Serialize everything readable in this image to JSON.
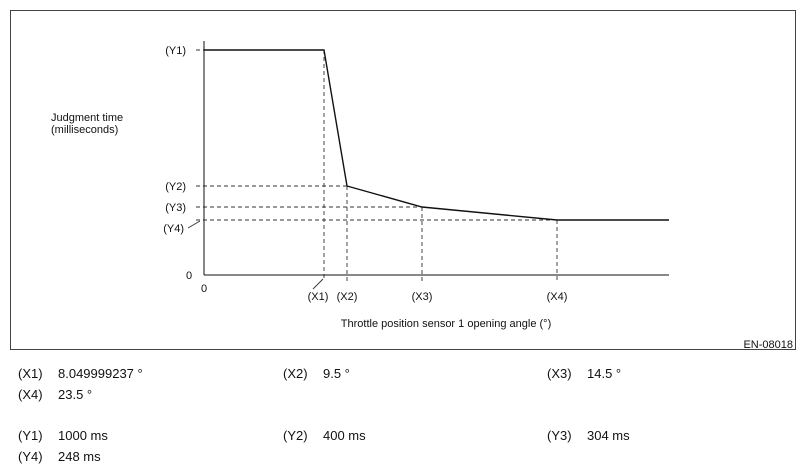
{
  "chart_data": {
    "type": "line",
    "ylabel_line1": "Judgment time",
    "ylabel_line2": "(milliseconds)",
    "xlabel": "Throttle position sensor 1 opening angle (°)",
    "figure_id": "EN-08018",
    "origin_x_label": "0",
    "origin_y_label": "0",
    "x_marks": [
      {
        "label": "(X1)",
        "value": 8.05
      },
      {
        "label": "(X2)",
        "value": 9.5
      },
      {
        "label": "(X3)",
        "value": 14.5
      },
      {
        "label": "(X4)",
        "value": 23.5
      }
    ],
    "y_marks": [
      {
        "label": "(Y1)",
        "value": 1000
      },
      {
        "label": "(Y2)",
        "value": 400
      },
      {
        "label": "(Y3)",
        "value": 304
      },
      {
        "label": "(Y4)",
        "value": 248
      }
    ],
    "series": [
      {
        "x": [
          0,
          8.05,
          9.5,
          14.5,
          23.5,
          31
        ],
        "y": [
          1000,
          1000,
          400,
          304,
          248,
          248
        ]
      }
    ]
  },
  "legend": {
    "x_values": [
      {
        "tag": "(X1)",
        "text": "8.049999237 °"
      },
      {
        "tag": "(X2)",
        "text": "9.5 °"
      },
      {
        "tag": "(X3)",
        "text": "14.5 °"
      },
      {
        "tag": "(X4)",
        "text": "23.5 °"
      }
    ],
    "y_values": [
      {
        "tag": "(Y1)",
        "text": "1000 ms"
      },
      {
        "tag": "(Y2)",
        "text": "400 ms"
      },
      {
        "tag": "(Y3)",
        "text": "304 ms"
      },
      {
        "tag": "(Y4)",
        "text": "248 ms"
      }
    ]
  }
}
